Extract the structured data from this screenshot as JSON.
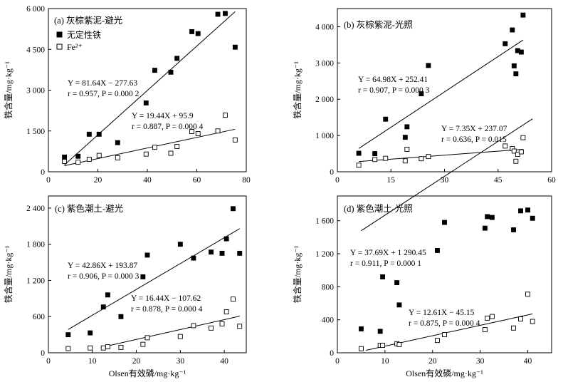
{
  "figure": {
    "shared_xlabel": "Olsen有效磷/mg·kg⁻¹",
    "legend": {
      "filled_label": "无定性铁",
      "open_label": "Fe²⁺"
    }
  },
  "chart_data": [
    {
      "type": "scatter",
      "title": "(a) 灰棕紫泥-避光",
      "ylabel": "铁含量/mg·kg⁻¹",
      "xlabel": "",
      "xlim": [
        0,
        80
      ],
      "ylim": [
        0,
        6000
      ],
      "xticks": [
        0,
        20,
        40,
        60,
        80
      ],
      "yticks": [
        0,
        1500,
        3000,
        4500,
        6000
      ],
      "ytick_labels": [
        "0",
        "1 500",
        "3 000",
        "4 500",
        "6 000"
      ],
      "legend_position": "top-left",
      "series": [
        {
          "name": "无定性铁",
          "marker": "filled-square",
          "x": [
            6.5,
            12,
            16.5,
            20.5,
            28,
            39.5,
            43,
            49.5,
            52,
            58,
            60.5,
            68.5,
            71.5,
            75.5
          ],
          "y": [
            540,
            570,
            1380,
            1380,
            1070,
            2530,
            3730,
            3660,
            4170,
            5150,
            5080,
            5790,
            5820,
            4580
          ],
          "fit": {
            "slope": 81.64,
            "intercept": -277.63,
            "x_range": [
              6.5,
              75.5
            ]
          },
          "eq_line1": "Y = 81.64X − 277.63",
          "eq_line2": "r = 0.957,  P = 0.000 2"
        },
        {
          "name": "Fe²⁺",
          "marker": "open-square",
          "x": [
            6.5,
            12,
            16.5,
            20.5,
            28,
            39.5,
            43,
            49.5,
            52,
            58,
            60.5,
            68.5,
            71.5,
            75.5
          ],
          "y": [
            380,
            350,
            460,
            600,
            510,
            650,
            900,
            680,
            930,
            1480,
            1400,
            1500,
            2080,
            1170
          ],
          "fit": {
            "slope": 19.44,
            "intercept": 95.9,
            "x_range": [
              6.5,
              75.5
            ]
          },
          "eq_line1": "Y = 19.44X + 95.9",
          "eq_line2": "r = 0.887,  P = 0.000 4"
        }
      ]
    },
    {
      "type": "scatter",
      "title": "(b) 灰棕紫泥-光照",
      "ylabel": "铁含量/mg·kg⁻¹",
      "xlabel": "",
      "xlim": [
        0,
        60
      ],
      "ylim": [
        0,
        4500
      ],
      "xticks": [
        0,
        15,
        30,
        45,
        60
      ],
      "yticks": [
        0,
        1000,
        2000,
        3000,
        4000
      ],
      "ytick_labels": [
        "0",
        "1 000",
        "2 000",
        "3 000",
        "4 000"
      ],
      "series": [
        {
          "name": "无定性铁",
          "marker": "filled-square",
          "x": [
            6,
            10.5,
            13.5,
            19,
            19.5,
            23.5,
            25.5,
            47,
            49,
            49.5,
            50,
            50.5,
            51.5,
            52
          ],
          "y": [
            510,
            500,
            1450,
            950,
            1240,
            2150,
            2930,
            3530,
            3910,
            2920,
            2700,
            3340,
            3300,
            4320
          ],
          "fit": {
            "slope": 64.98,
            "intercept": 252.41,
            "x_range": [
              6,
              52
            ]
          },
          "eq_line1": "Y = 64.98X + 252.41",
          "eq_line2": "r = 0.907,  P = 0.000 3"
        },
        {
          "name": "Fe²⁺",
          "marker": "open-square",
          "x": [
            6,
            10.5,
            13.5,
            19,
            19.5,
            23.5,
            25.5,
            47,
            49,
            49.5,
            50,
            50.5,
            51.5,
            52
          ],
          "y": [
            180,
            340,
            370,
            300,
            620,
            360,
            420,
            710,
            640,
            570,
            290,
            480,
            550,
            940
          ],
          "fit": {
            "slope": 7.35,
            "intercept": 237.07,
            "x_range": [
              6,
              52
            ]
          },
          "eq_line1": "Y = 7.35X + 237.07",
          "eq_line2": "r = 0.636,  P = 0.015"
        }
      ]
    },
    {
      "type": "scatter",
      "title": "(c) 紫色潮土-避光",
      "ylabel": "铁含量/mg·kg⁻¹",
      "xlabel": "Olsen有效磷/mg·kg⁻¹",
      "xlim": [
        0,
        45
      ],
      "ylim": [
        0,
        2600
      ],
      "xticks": [
        0,
        10,
        20,
        30,
        40
      ],
      "yticks": [
        0,
        600,
        1200,
        1800,
        2400
      ],
      "ytick_labels": [
        "0",
        "600",
        "1 200",
        "1 800",
        "2 400"
      ],
      "series": [
        {
          "name": "无定性铁",
          "marker": "filled-square",
          "x": [
            4.5,
            9.5,
            12.5,
            13.5,
            16.5,
            21.5,
            22.5,
            30,
            33,
            37,
            39.5,
            40.5,
            42,
            43.5
          ],
          "y": [
            300,
            330,
            760,
            960,
            600,
            1260,
            1620,
            1800,
            1570,
            1670,
            1650,
            1890,
            2390,
            1650
          ],
          "fit": {
            "slope": 42.86,
            "intercept": 193.87,
            "x_range": [
              4.5,
              43.5
            ]
          },
          "eq_line1": "Y = 42.86X + 193.87",
          "eq_line2": "r = 0.906,  P = 0.000 3"
        },
        {
          "name": "Fe²⁺",
          "marker": "open-square",
          "x": [
            4.5,
            9.5,
            12.5,
            13.5,
            16.5,
            21.5,
            22.5,
            30,
            33,
            37,
            39.5,
            40.5,
            42,
            43.5
          ],
          "y": [
            70,
            80,
            80,
            100,
            90,
            140,
            250,
            270,
            450,
            410,
            480,
            680,
            890,
            440
          ],
          "fit": {
            "slope": 16.44,
            "intercept": -107.62,
            "x_range": [
              12,
              43.5
            ]
          },
          "eq_line1": "Y = 16.44X − 107.62",
          "eq_line2": "r = 0.878,  P = 0.000 4"
        }
      ]
    },
    {
      "type": "scatter",
      "title": "(d) 紫色潮土-光照",
      "ylabel": "铁含量/mg·kg⁻¹",
      "xlabel": "Olsen有效磷/mg·kg⁻¹",
      "xlim": [
        0,
        45
      ],
      "ylim": [
        0,
        1900
      ],
      "xticks": [
        0,
        10,
        20,
        30,
        40
      ],
      "yticks": [
        0,
        400,
        800,
        1200,
        1600
      ],
      "ytick_labels": [
        "0",
        "400",
        "800",
        "1 200",
        "1 600"
      ],
      "series": [
        {
          "name": "无定性铁",
          "marker": "filled-square",
          "x": [
            5,
            9,
            9.5,
            12.5,
            13,
            21,
            22.5,
            31,
            31.5,
            32.5,
            37,
            38.5,
            40,
            41
          ],
          "y": [
            290,
            260,
            920,
            850,
            580,
            1240,
            1580,
            1510,
            1650,
            1640,
            1490,
            1720,
            1730,
            1630
          ],
          "fit": {
            "slope": 37.69,
            "intercept": 1290.45,
            "x_range": [
              5,
              41
            ]
          },
          "eq_line1": "Y = 37.69X + 1 290.45",
          "eq_line2": "r = 0.911,  P = 0.000 1"
        },
        {
          "name": "Fe²⁺",
          "marker": "open-square",
          "x": [
            5,
            9,
            9.5,
            12.5,
            13,
            21,
            22.5,
            31,
            31.5,
            32.5,
            37,
            38.5,
            40,
            41
          ],
          "y": [
            50,
            90,
            90,
            110,
            100,
            150,
            220,
            280,
            420,
            440,
            300,
            410,
            710,
            380
          ],
          "fit": {
            "slope": 12.61,
            "intercept": -45.15,
            "x_range": [
              6,
              41
            ]
          },
          "eq_line1": "Y = 12.61X − 45.15",
          "eq_line2": "r = 0.875,  P = 0.000 4"
        }
      ]
    }
  ]
}
